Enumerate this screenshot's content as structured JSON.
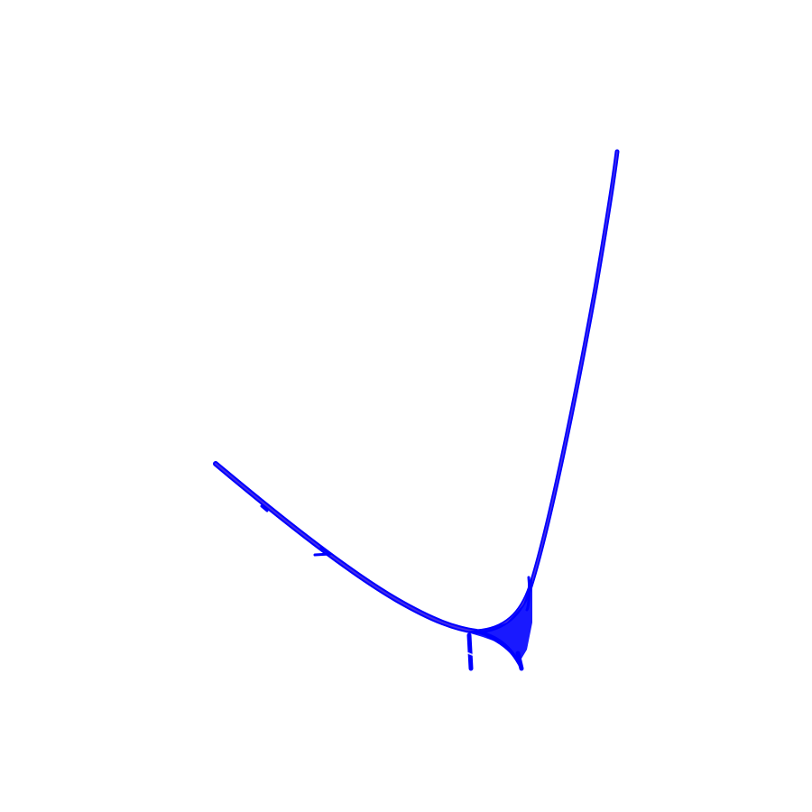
{
  "figure": {
    "background": "#ffffff",
    "stroke_color": "#0000ff",
    "highlight_color": "#c080c0",
    "description_of_marks": "graph-layout-edge-bundle"
  },
  "branches": [
    {
      "name": "left-arm",
      "color": "#0000ff"
    },
    {
      "name": "right-arm",
      "color": "#0000ff"
    },
    {
      "name": "bottom-hub",
      "color": "#0000ff"
    },
    {
      "name": "stub-left",
      "color": "#0000ff"
    },
    {
      "name": "stub-right",
      "color": "#0000ff"
    },
    {
      "name": "side-spur",
      "color": "#0000ff"
    }
  ]
}
